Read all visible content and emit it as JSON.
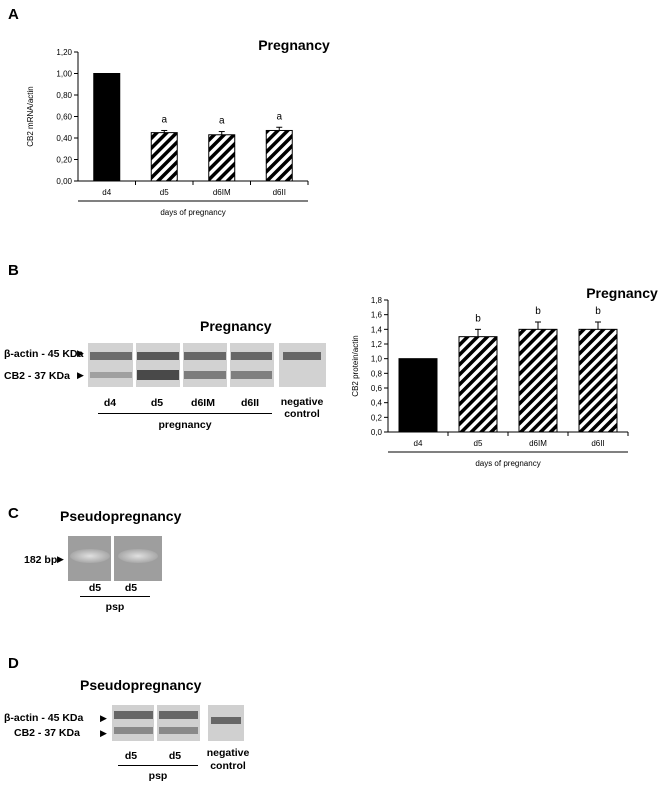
{
  "panels": {
    "A": {
      "letter": "A",
      "chart_data": {
        "type": "bar",
        "title": "Pregnancy",
        "ylabel": "CB2 mRNA/actin",
        "xlabel": "days of pregnancy",
        "categories": [
          "d4",
          "d5",
          "d6IM",
          "d6II"
        ],
        "values": [
          1.0,
          0.45,
          0.43,
          0.47
        ],
        "errors": [
          0.0,
          0.02,
          0.03,
          0.03
        ],
        "annotations": [
          "",
          "a",
          "a",
          "a"
        ],
        "fills": [
          "solid",
          "hatched",
          "hatched",
          "hatched"
        ],
        "ylim": [
          0,
          1.2
        ],
        "yticks": [
          "0,00",
          "0,20",
          "0,40",
          "0,60",
          "0,80",
          "1,00",
          "1,20"
        ]
      }
    },
    "B": {
      "letter": "B",
      "blot": {
        "title": "Pregnancy",
        "band_labels": [
          "β-actin - 45 KDa",
          "CB2 - 37 KDa"
        ],
        "lanes": [
          "d4",
          "d5",
          "d6IM",
          "d6II"
        ],
        "group_label": "pregnancy",
        "control_label_1": "negative",
        "control_label_2": "control"
      },
      "chart_data": {
        "type": "bar",
        "title": "Pregnancy",
        "ylabel": "CB2 protein/actin",
        "xlabel": "days of pregnancy",
        "categories": [
          "d4",
          "d5",
          "d6IM",
          "d6II"
        ],
        "values": [
          1.0,
          1.3,
          1.4,
          1.4
        ],
        "errors": [
          0.0,
          0.1,
          0.1,
          0.1
        ],
        "annotations": [
          "",
          "b",
          "b",
          "b"
        ],
        "fills": [
          "solid",
          "hatched",
          "hatched",
          "hatched"
        ],
        "ylim": [
          0,
          1.8
        ],
        "yticks": [
          "0,0",
          "0,2",
          "0,4",
          "0,6",
          "0,8",
          "1,0",
          "1,2",
          "1,4",
          "1,6",
          "1,8"
        ]
      }
    },
    "C": {
      "letter": "C",
      "title": "Pseudopregnancy",
      "band_label": "182 bp",
      "lanes": [
        "d5",
        "d5"
      ],
      "group_label": "psp"
    },
    "D": {
      "letter": "D",
      "title": "Pseudopregnancy",
      "band_labels": [
        "β-actin - 45 KDa",
        "CB2 - 37 KDa"
      ],
      "lanes": [
        "d5",
        "d5"
      ],
      "group_label": "psp",
      "control_label_1": "negative",
      "control_label_2": "control"
    }
  }
}
